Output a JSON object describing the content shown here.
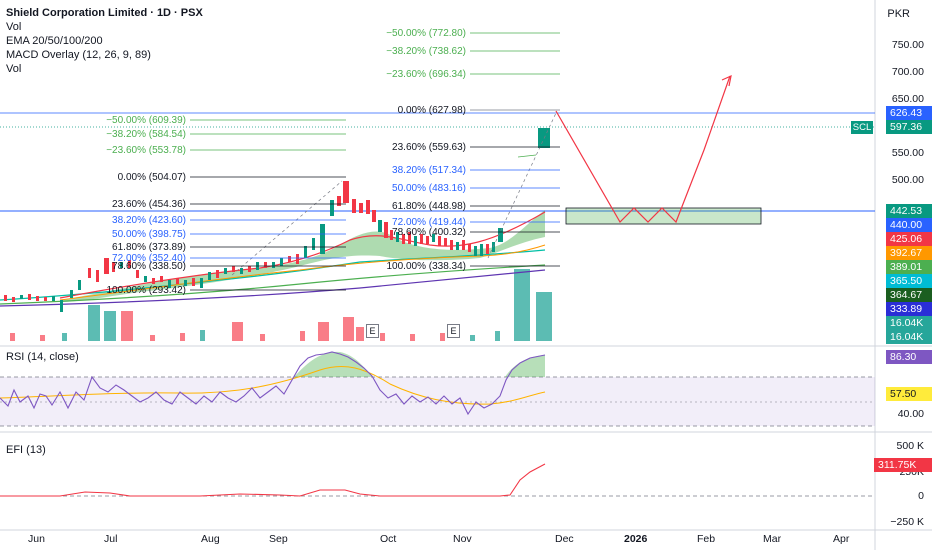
{
  "legend": {
    "title": "Shield Corporation Limited · 1D · PSX",
    "lines": [
      "Vol",
      "EMA 20/50/100/200",
      "MACD Overlay (12, 26, 9, 89)",
      "Vol"
    ]
  },
  "currency": "PKR",
  "rsi_label": "RSI (14, close)",
  "efi_label": "EFI (13)",
  "price_axis": [
    "750.00",
    "700.00",
    "650.00",
    "550.00",
    "500.00"
  ],
  "rsi_axis": [
    "40.00"
  ],
  "efi_axis": [
    "500 K",
    "250K",
    "0",
    "−250 K"
  ],
  "time_axis": [
    {
      "label": "Jun",
      "bold": false
    },
    {
      "label": "Jul",
      "bold": false
    },
    {
      "label": "Aug",
      "bold": false
    },
    {
      "label": "Sep",
      "bold": false
    },
    {
      "label": "Oct",
      "bold": false
    },
    {
      "label": "Nov",
      "bold": false
    },
    {
      "label": "Dec",
      "bold": false
    },
    {
      "label": "2026",
      "bold": true
    },
    {
      "label": "Feb",
      "bold": false
    },
    {
      "label": "Mar",
      "bold": false
    },
    {
      "label": "Apr",
      "bold": false
    }
  ],
  "price_tags": [
    {
      "text": "626.43",
      "bg": "#2962ff"
    },
    {
      "text": "597.36",
      "bg": "#089981"
    },
    {
      "text": "442.53",
      "bg": "#089981"
    },
    {
      "text": "440.00",
      "bg": "#2962ff"
    },
    {
      "text": "425.06",
      "bg": "#f23645"
    },
    {
      "text": "392.67",
      "bg": "#ff9800"
    },
    {
      "text": "389.01",
      "bg": "#4caf50"
    },
    {
      "text": "365.50",
      "bg": "#00bcd4"
    },
    {
      "text": "364.67",
      "bg": "#1b5e20"
    },
    {
      "text": "333.89",
      "bg": "#2a2ed6"
    },
    {
      "text": "16.04K",
      "bg": "#26a69a"
    },
    {
      "text": "16.04K",
      "bg": "#26a69a"
    }
  ],
  "rsi_tags": [
    {
      "text": "86.30",
      "bg": "#7e57c2"
    },
    {
      "text": "57.50",
      "bg": "#ffeb3b"
    }
  ],
  "efi_tag": {
    "text": "311.75K",
    "bg": "#f23645"
  },
  "scl_tag": "SCL",
  "events": [
    "E",
    "E"
  ],
  "fib_upper": [
    "−50.00% (772.80)",
    "−38.20% (738.62)",
    "−23.60% (696.34)",
    "0.00% (627.98)",
    "23.60% (559.63)",
    "38.20% (517.34)",
    "50.00% (483.16)",
    "61.80% (448.98)",
    "72.00% (419.44)",
    "78.60% (400.32)",
    "100.00% (338.34)"
  ],
  "fib_lower": [
    "−50.00% (609.39)",
    "−38.20% (584.54)",
    "−23.60% (553.78)",
    "0.00% (504.07)",
    "23.60% (454.36)",
    "38.20% (423.60)",
    "50.00% (398.75)",
    "61.80% (373.89)",
    "72.00% (352.40)",
    "78.60% (338.50)",
    "100.00% (293.42)"
  ],
  "chart_data": {
    "type": "candlestick",
    "symbol": "SCL",
    "exchange": "PSX",
    "interval": "1D",
    "last_price": 597.36,
    "resistance_level": 440.0,
    "target_zone": [
      425,
      447
    ],
    "projected_peak": 690
  }
}
